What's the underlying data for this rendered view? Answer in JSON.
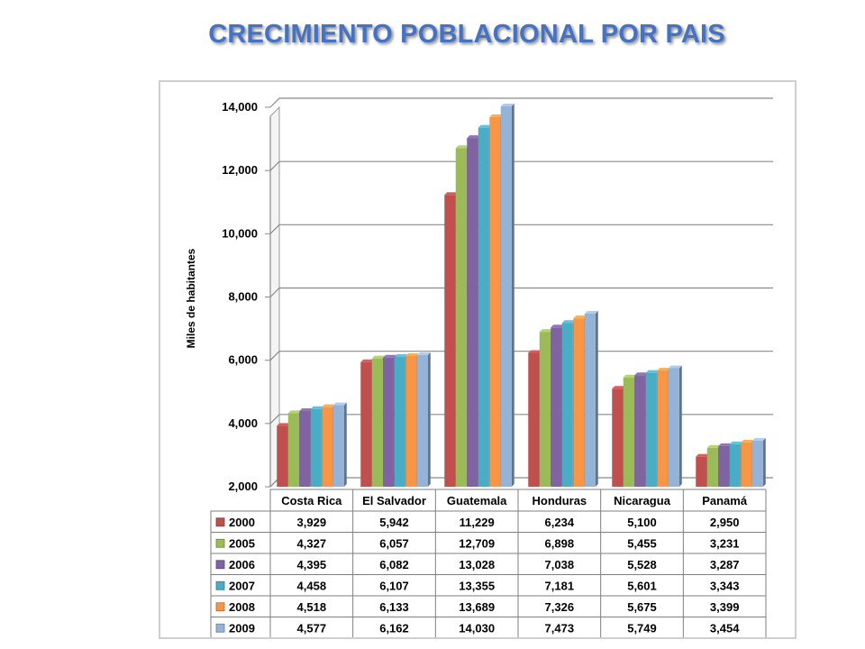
{
  "title": "CRECIMIENTO POBLACIONAL POR PAIS",
  "chart_data": {
    "type": "bar",
    "ylabel": "Miles de habitantes",
    "ylim": [
      2000,
      14000
    ],
    "yticks": [
      "2,000",
      "4,000",
      "6,000",
      "8,000",
      "10,000",
      "12,000",
      "14,000"
    ],
    "grid": true,
    "categories": [
      "Costa Rica",
      "El Salvador",
      "Guatemala",
      "Honduras",
      "Nicaragua",
      "Panamá"
    ],
    "series": [
      {
        "name": "2000",
        "color": "#c0504d",
        "values": [
          3929,
          5942,
          11229,
          6234,
          5100,
          2950
        ],
        "labels": [
          "3,929",
          "5,942",
          "11,229",
          "6,234",
          "5,100",
          "2,950"
        ]
      },
      {
        "name": "2005",
        "color": "#9bbb59",
        "values": [
          4327,
          6057,
          12709,
          6898,
          5455,
          3231
        ],
        "labels": [
          "4,327",
          "6,057",
          "12,709",
          "6,898",
          "5,455",
          "3,231"
        ]
      },
      {
        "name": "2006",
        "color": "#8064a2",
        "values": [
          4395,
          6082,
          13028,
          7038,
          5528,
          3287
        ],
        "labels": [
          "4,395",
          "6,082",
          "13,028",
          "7,038",
          "5,528",
          "3,287"
        ]
      },
      {
        "name": "2007",
        "color": "#4bacc6",
        "values": [
          4458,
          6107,
          13355,
          7181,
          5601,
          3343
        ],
        "labels": [
          "4,458",
          "6,107",
          "13,355",
          "7,181",
          "5,601",
          "3,343"
        ]
      },
      {
        "name": "2008",
        "color": "#f79646",
        "values": [
          4518,
          6133,
          13689,
          7326,
          5675,
          3399
        ],
        "labels": [
          "4,518",
          "6,133",
          "13,689",
          "7,326",
          "5,675",
          "3,399"
        ]
      },
      {
        "name": "2009",
        "color": "#95b3d7",
        "values": [
          4577,
          6162,
          14030,
          7473,
          5749,
          3454
        ],
        "labels": [
          "4,577",
          "6,162",
          "14,030",
          "7,473",
          "5,749",
          "3,454"
        ]
      }
    ]
  }
}
